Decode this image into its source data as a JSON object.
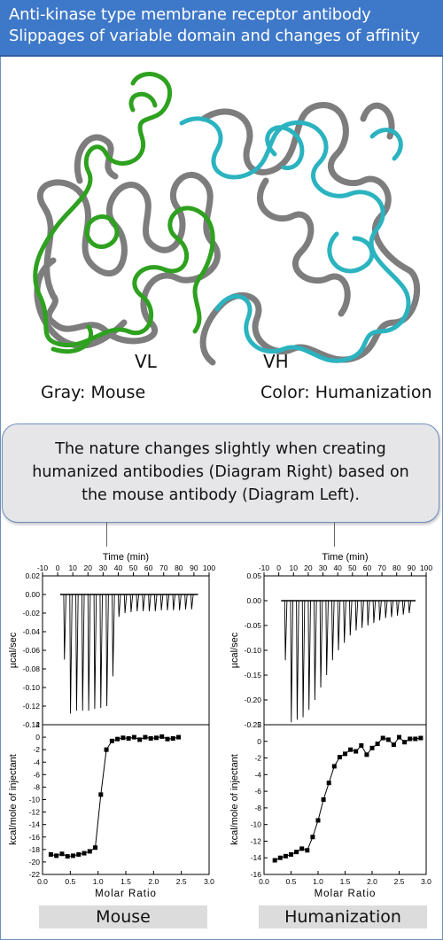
{
  "header": {
    "line1": "Anti-kinase type membrane receptor antibody",
    "line2": "Slippages of variable domain and changes of affinity"
  },
  "structure": {
    "vl_label": "VL",
    "vh_label": "VH",
    "left_legend": "Gray: Mouse",
    "right_legend": "Color: Humanization",
    "colors": {
      "mouse": "#7d7d7d",
      "vl_human": "#2ea11f",
      "vh_human": "#2bb3c0"
    }
  },
  "note": {
    "line1": "The nature changes slightly when creating",
    "line2": "humanized antibodies (Diagram Right) based on",
    "line3": "the mouse antibody (Diagram Left)."
  },
  "chart_data": [
    {
      "type": "line",
      "panel": "Mouse",
      "title": "",
      "xlabel": "Time (min)",
      "ylabel": "µcal/sec",
      "xlim": [
        -10,
        100
      ],
      "ylim": [
        -0.14,
        0.02
      ],
      "x_ticks": [
        "-10",
        "0",
        "10",
        "20",
        "30",
        "40",
        "50",
        "60",
        "70",
        "80",
        "90",
        "100"
      ],
      "y_ticks": [
        "0.02",
        "0.00",
        "-0.02",
        "-0.04",
        "-0.06",
        "-0.08",
        "-0.10",
        "-0.12",
        "-0.14"
      ],
      "baseline": 0.0,
      "series": [
        {
          "x": [
            4,
            8,
            12,
            16,
            20,
            24,
            28,
            32,
            36,
            40,
            44,
            48,
            52,
            56,
            60,
            64,
            68,
            72,
            76,
            80,
            84,
            88
          ],
          "values": [
            -0.07,
            -0.128,
            -0.125,
            -0.125,
            -0.125,
            -0.123,
            -0.122,
            -0.12,
            -0.088,
            -0.024,
            -0.02,
            -0.019,
            -0.018,
            -0.018,
            -0.018,
            -0.018,
            -0.017,
            -0.017,
            -0.017,
            -0.017,
            -0.016,
            -0.016
          ]
        }
      ]
    },
    {
      "type": "scatter",
      "panel": "Mouse",
      "title": "",
      "xlabel": "Molar Ratio",
      "ylabel": "kcal/mole of injectant",
      "xlim": [
        0.0,
        3.0
      ],
      "ylim": [
        -22,
        2
      ],
      "x_ticks": [
        "0.0",
        "0.5",
        "1.0",
        "1.5",
        "2.0",
        "2.5",
        "3.0"
      ],
      "y_ticks": [
        "2",
        "0",
        "-2",
        "-4",
        "-6",
        "-8",
        "-10",
        "-12",
        "-14",
        "-16",
        "-18",
        "-20",
        "-22"
      ],
      "series": [
        {
          "x": [
            0.15,
            0.25,
            0.35,
            0.45,
            0.55,
            0.65,
            0.75,
            0.85,
            0.95,
            1.05,
            1.15,
            1.25,
            1.35,
            1.45,
            1.55,
            1.65,
            1.75,
            1.85,
            1.95,
            2.05,
            2.15,
            2.25,
            2.35,
            2.45
          ],
          "values": [
            -18.8,
            -19.0,
            -18.7,
            -19.1,
            -19.0,
            -18.8,
            -18.6,
            -18.3,
            -17.7,
            -9.2,
            -2.0,
            -0.6,
            -0.3,
            -0.1,
            -0.2,
            0.0,
            -0.4,
            0.0,
            -0.2,
            -0.1,
            0.1,
            -0.3,
            -0.2,
            0.0
          ]
        }
      ]
    },
    {
      "type": "line",
      "panel": "Humanization",
      "title": "",
      "xlabel": "Time (min)",
      "ylabel": "µcal/sec",
      "xlim": [
        -10,
        100
      ],
      "ylim": [
        -0.25,
        0.05
      ],
      "x_ticks": [
        "-10",
        "0",
        "10",
        "20",
        "30",
        "40",
        "50",
        "60",
        "70",
        "80",
        "90",
        "100"
      ],
      "y_ticks": [
        "0.05",
        "0.00",
        "-0.05",
        "-0.10",
        "-0.15",
        "-0.20",
        "-0.25"
      ],
      "baseline": 0.0,
      "series": [
        {
          "x": [
            4,
            8,
            12,
            16,
            20,
            24,
            28,
            32,
            36,
            40,
            44,
            48,
            52,
            56,
            60,
            64,
            68,
            72,
            76,
            80,
            84,
            88
          ],
          "values": [
            -0.12,
            -0.245,
            -0.24,
            -0.235,
            -0.22,
            -0.2,
            -0.175,
            -0.15,
            -0.12,
            -0.1,
            -0.085,
            -0.07,
            -0.06,
            -0.055,
            -0.05,
            -0.045,
            -0.04,
            -0.035,
            -0.033,
            -0.03,
            -0.028,
            -0.025
          ]
        }
      ]
    },
    {
      "type": "scatter",
      "panel": "Humanization",
      "title": "",
      "xlabel": "Molar Ratio",
      "ylabel": "kcal/mole of injectant",
      "xlim": [
        0.0,
        3.0
      ],
      "ylim": [
        -16,
        2
      ],
      "x_ticks": [
        "0.0",
        "0.5",
        "1.0",
        "1.5",
        "2.0",
        "2.5",
        "3.0"
      ],
      "y_ticks": [
        "2",
        "0",
        "-2",
        "-4",
        "-6",
        "-8",
        "-10",
        "-12",
        "-14",
        "-16"
      ],
      "series": [
        {
          "x": [
            0.2,
            0.3,
            0.4,
            0.5,
            0.6,
            0.7,
            0.8,
            0.9,
            1.0,
            1.1,
            1.2,
            1.3,
            1.4,
            1.5,
            1.6,
            1.7,
            1.8,
            1.9,
            2.0,
            2.1,
            2.2,
            2.3,
            2.4,
            2.5,
            2.6,
            2.7,
            2.8,
            2.9
          ],
          "values": [
            -14.3,
            -14.0,
            -13.8,
            -13.6,
            -13.3,
            -12.9,
            -13.1,
            -11.5,
            -9.5,
            -7.0,
            -5.0,
            -3.0,
            -1.9,
            -1.5,
            -1.0,
            -1.2,
            -0.5,
            -1.6,
            -0.8,
            -0.3,
            0.4,
            0.2,
            -0.4,
            0.5,
            -0.1,
            0.3,
            0.3,
            0.4
          ]
        }
      ]
    }
  ],
  "captions": {
    "left": "Mouse",
    "right": "Humanization"
  }
}
